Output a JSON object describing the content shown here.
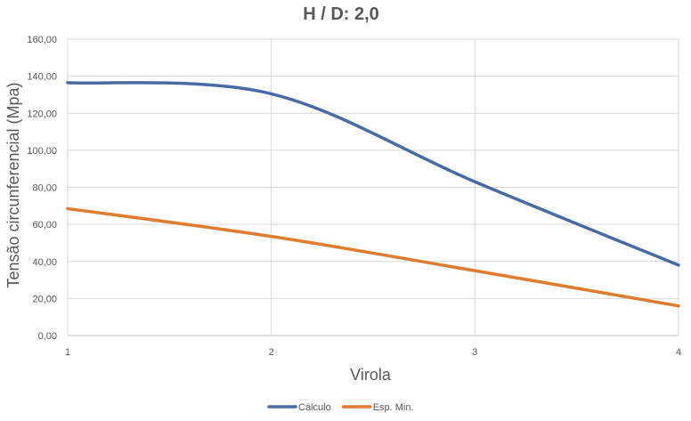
{
  "chart_data": {
    "type": "line",
    "title": "H / D: 2,0",
    "xlabel": "Virola",
    "ylabel": "Tensão circunferencial (Mpa)",
    "x": [
      1,
      2,
      3,
      4
    ],
    "x_tick_labels": [
      "1",
      "2",
      "3",
      "4"
    ],
    "ylim": [
      0,
      160
    ],
    "y_tick_labels": [
      "0,00",
      "20,00",
      "40,00",
      "60,00",
      "80,00",
      "100,00",
      "120,00",
      "140,00",
      "160,00"
    ],
    "grid": true,
    "legend_position": "bottom",
    "series": [
      {
        "name": "Cálculo",
        "values": [
          136.5,
          130.5,
          83.0,
          38.0
        ],
        "color": "#4a6aa5"
      },
      {
        "name": "Esp. Min.",
        "values": [
          68.5,
          53.5,
          35.0,
          16.0
        ],
        "color": "#e07b2f"
      }
    ]
  }
}
